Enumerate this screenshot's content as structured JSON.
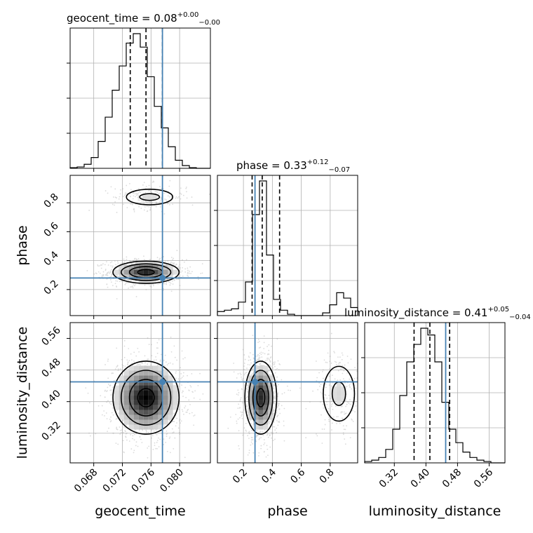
{
  "chart_data": {
    "type": "corner",
    "parameters": [
      "geocent_time",
      "phase",
      "luminosity_distance"
    ],
    "titles": [
      {
        "param": "geocent_time",
        "text": "geocent_time = 0.08",
        "upper": "+0.00",
        "lower": "−0.00"
      },
      {
        "param": "phase",
        "text": "phase = 0.33",
        "upper": "+0.12",
        "lower": "−0.07"
      },
      {
        "param": "luminosity_distance",
        "text": "luminosity_distance = 0.41",
        "upper": "+0.05",
        "lower": "−0.04"
      }
    ],
    "axis_labels": {
      "x": [
        "geocent_time",
        "phase",
        "luminosity_distance"
      ],
      "y": [
        "phase",
        "luminosity_distance"
      ]
    },
    "ranges": {
      "geocent_time": [
        0.0647,
        0.0843
      ],
      "phase": [
        0.02,
        0.99
      ],
      "luminosity_distance": [
        0.245,
        0.6
      ]
    },
    "ticks": {
      "geocent_time": [
        "0.068",
        "0.072",
        "0.076",
        "0.080"
      ],
      "phase": [
        "0.2",
        "0.4",
        "0.6",
        "0.8"
      ],
      "luminosity_distance": [
        "0.32",
        "0.40",
        "0.48",
        "0.56"
      ]
    },
    "truths": {
      "geocent_time": 0.0776,
      "phase": 0.28,
      "luminosity_distance": 0.45
    },
    "quantiles": {
      "geocent_time": [
        0.0731,
        0.0753,
        0.0776
      ],
      "phase": [
        0.26,
        0.33,
        0.45
      ],
      "luminosity_distance": [
        0.37,
        0.41,
        0.46
      ]
    },
    "histograms": {
      "geocent_time": [
        0.005,
        0.01,
        0.03,
        0.08,
        0.2,
        0.38,
        0.58,
        0.76,
        0.93,
        1.0,
        0.9,
        0.68,
        0.46,
        0.3,
        0.16,
        0.06,
        0.02,
        0.005,
        0.0,
        0.0
      ],
      "phase": [
        0.03,
        0.04,
        0.05,
        0.1,
        0.25,
        0.75,
        1.0,
        0.45,
        0.12,
        0.04,
        0.01,
        0.0,
        0.0,
        0.0,
        0.0,
        0.02,
        0.08,
        0.17,
        0.13,
        0.06
      ],
      "luminosity_distance": [
        0.01,
        0.02,
        0.04,
        0.1,
        0.25,
        0.5,
        0.75,
        0.88,
        1.0,
        0.95,
        0.75,
        0.45,
        0.25,
        0.15,
        0.08,
        0.04,
        0.02,
        0.01,
        0.0,
        0.0
      ]
    },
    "grid": true,
    "colors": {
      "truth": "#4682b4",
      "hist": "#000000",
      "contour": "#000000",
      "grid": "#b0b0b0",
      "samples": "#999999"
    }
  }
}
